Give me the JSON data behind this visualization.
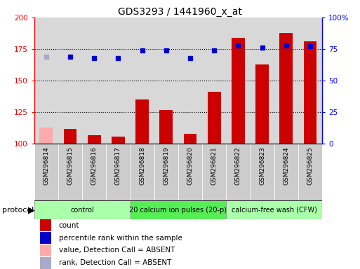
{
  "title": "GDS3293 / 1441960_x_at",
  "samples": [
    "GSM296814",
    "GSM296815",
    "GSM296816",
    "GSM296817",
    "GSM296818",
    "GSM296819",
    "GSM296820",
    "GSM296821",
    "GSM296822",
    "GSM296823",
    "GSM296824",
    "GSM296825"
  ],
  "count_values": [
    113,
    112,
    107,
    106,
    135,
    127,
    108,
    141,
    184,
    163,
    188,
    181
  ],
  "percentile_values": [
    169,
    169,
    168,
    168,
    174,
    174,
    168,
    174,
    178,
    176,
    178,
    177
  ],
  "absent_mask": [
    true,
    false,
    false,
    false,
    false,
    false,
    false,
    false,
    false,
    false,
    false,
    false
  ],
  "ylim_left": [
    100,
    200
  ],
  "yticks_left": [
    100,
    125,
    150,
    175,
    200
  ],
  "ytick_labels_right": [
    "0",
    "25",
    "50",
    "75",
    "100%"
  ],
  "bar_color_present": "#cc0000",
  "bar_color_absent": "#ffaaaa",
  "dot_color_present": "#0000cc",
  "dot_color_absent": "#aaaacc",
  "bar_width": 0.55,
  "legend_items": [
    {
      "label": "count",
      "color": "#cc0000"
    },
    {
      "label": "percentile rank within the sample",
      "color": "#0000cc"
    },
    {
      "label": "value, Detection Call = ABSENT",
      "color": "#ffaaaa"
    },
    {
      "label": "rank, Detection Call = ABSENT",
      "color": "#aaaacc"
    }
  ],
  "protocol_groups": [
    {
      "label": "control",
      "cols": [
        0,
        1,
        2,
        3
      ]
    },
    {
      "label": "20 calcium ion pulses (20-p)",
      "cols": [
        4,
        5,
        6,
        7
      ]
    },
    {
      "label": "calcium-free wash (CFW)",
      "cols": [
        8,
        9,
        10,
        11
      ]
    }
  ],
  "protocol_label": "protocol",
  "grid_yticks": [
    125,
    150,
    175
  ],
  "bg_color": "#d8d8d8",
  "green_light": "#aaffaa",
  "green_bright": "#44ff44"
}
